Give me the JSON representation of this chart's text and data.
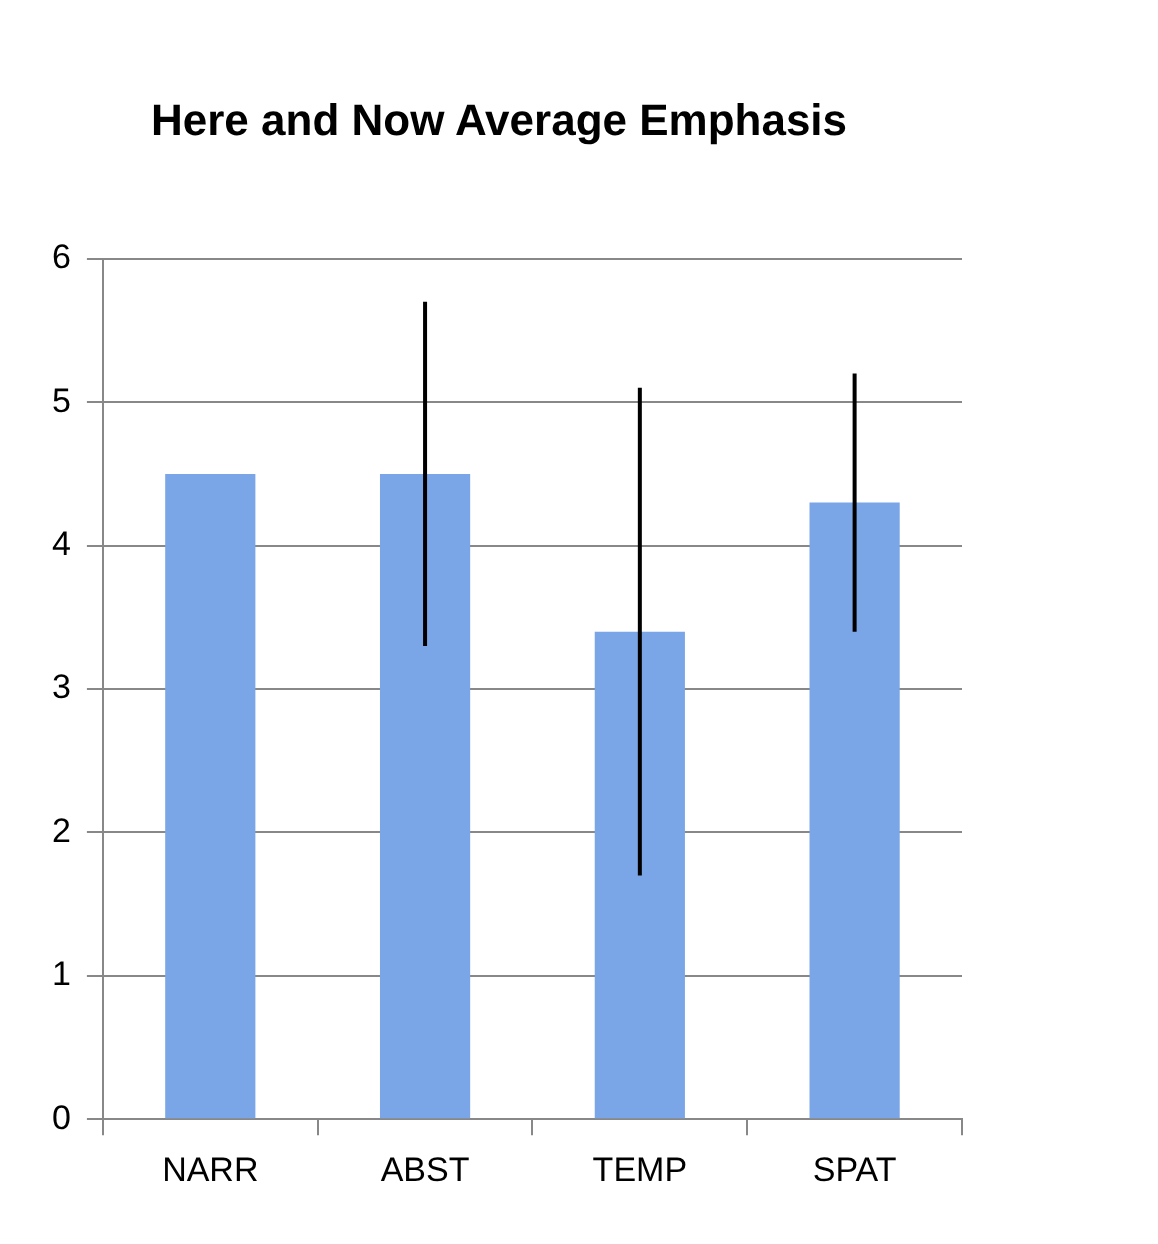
{
  "chart_data": {
    "type": "bar",
    "title": "Here and Now Average Emphasis",
    "categories": [
      "NARR",
      "ABST",
      "TEMP",
      "SPAT"
    ],
    "values": [
      4.5,
      4.5,
      3.4,
      4.3
    ],
    "errors": [
      0,
      1.2,
      1.7,
      0.9
    ],
    "color": "#7aa6e8",
    "ylim": [
      0,
      6
    ],
    "yticks": [
      0,
      1,
      2,
      3,
      4,
      5,
      6
    ],
    "grid": "y",
    "legend": false
  }
}
